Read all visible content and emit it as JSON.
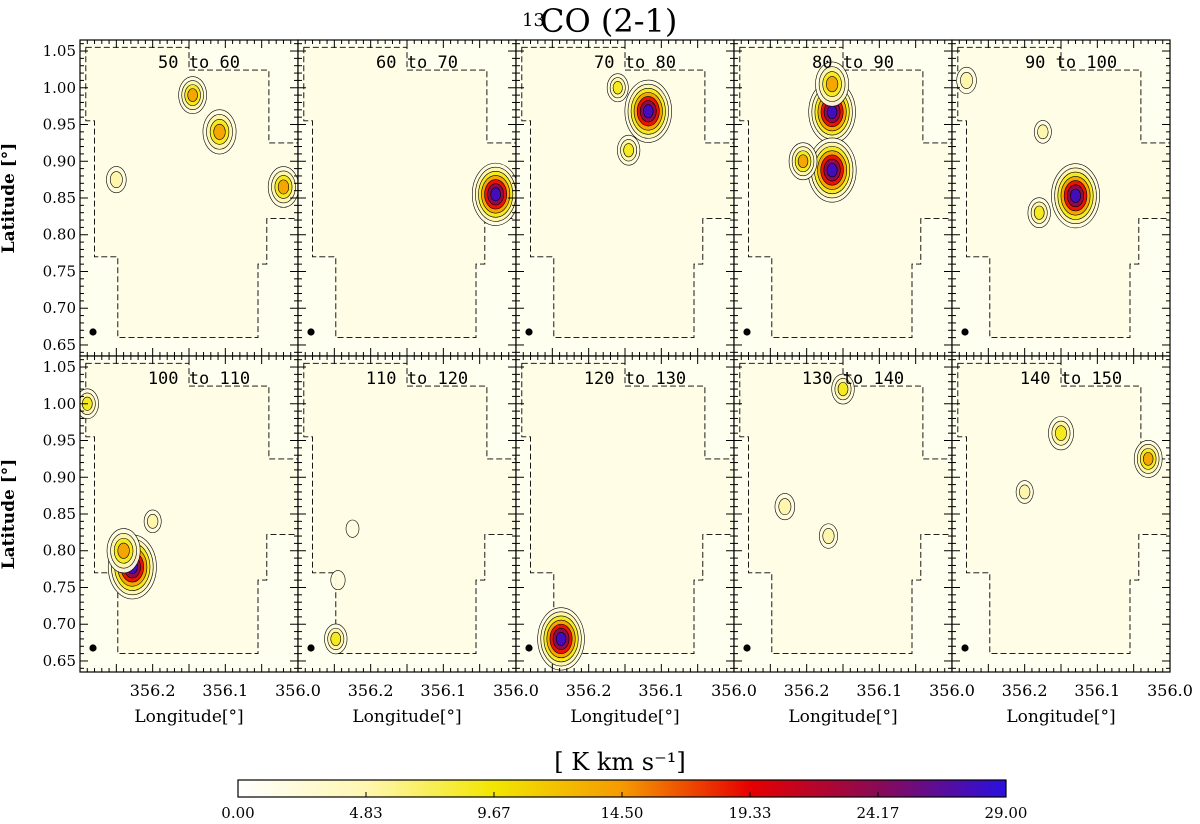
{
  "chart_data": {
    "type": "heatmap",
    "title": "13CO (2-1)",
    "title_superscript": "13",
    "title_main": "CO (2-1)",
    "xlabel": "Longitude[°]",
    "ylabel": "Latitude [°]",
    "xlim": [
      356.3,
      356.0
    ],
    "ylim": [
      0.635,
      1.065
    ],
    "xticks": [
      356.2,
      356.1,
      356.0
    ],
    "xtick_labels": [
      "356.2",
      "356.1",
      "356.0"
    ],
    "yticks": [
      1.05,
      1.0,
      0.95,
      0.9,
      0.85,
      0.8,
      0.75,
      0.7,
      0.65
    ],
    "ytick_labels": [
      "1.05",
      "1.00",
      "0.95",
      "0.90",
      "0.85",
      "0.80",
      "0.75",
      "0.70",
      "0.65"
    ],
    "colorbar": {
      "label": "[ K km s⁻¹]",
      "min": 0.0,
      "max": 29.0,
      "ticks": [
        "0.00",
        "4.83",
        "9.67",
        "14.50",
        "19.33",
        "24.17",
        "29.00"
      ],
      "colors": [
        "#ffffff",
        "#fff7b0",
        "#f2e600",
        "#f59a00",
        "#e60000",
        "#8a0a55",
        "#2a10e0"
      ]
    },
    "panels": [
      {
        "label": "50 to 60",
        "peaks": [
          {
            "l": 356.108,
            "b": 0.94,
            "v": 18
          },
          {
            "l": 356.02,
            "b": 0.865,
            "v": 16
          },
          {
            "l": 356.145,
            "b": 0.99,
            "v": 14
          },
          {
            "l": 356.25,
            "b": 0.875,
            "v": 8
          }
        ]
      },
      {
        "label": "60 to 70",
        "peaks": [
          {
            "l": 356.028,
            "b": 0.855,
            "v": 28
          }
        ]
      },
      {
        "label": "70 to 80",
        "peaks": [
          {
            "l": 356.118,
            "b": 0.968,
            "v": 28
          },
          {
            "l": 356.145,
            "b": 0.915,
            "v": 10
          },
          {
            "l": 356.16,
            "b": 1.0,
            "v": 9
          }
        ]
      },
      {
        "label": "80 to 90",
        "peaks": [
          {
            "l": 356.165,
            "b": 0.967,
            "v": 28
          },
          {
            "l": 356.165,
            "b": 0.888,
            "v": 29
          },
          {
            "l": 356.165,
            "b": 1.005,
            "v": 18
          },
          {
            "l": 356.205,
            "b": 0.9,
            "v": 14
          }
        ]
      },
      {
        "label": "90 to 100",
        "peaks": [
          {
            "l": 356.13,
            "b": 0.853,
            "v": 29
          },
          {
            "l": 356.18,
            "b": 0.83,
            "v": 10
          },
          {
            "l": 356.175,
            "b": 0.94,
            "v": 6
          },
          {
            "l": 356.28,
            "b": 1.01,
            "v": 8
          }
        ]
      },
      {
        "label": "100 to 110",
        "peaks": [
          {
            "l": 356.228,
            "b": 0.778,
            "v": 29
          },
          {
            "l": 356.24,
            "b": 0.8,
            "v": 18
          },
          {
            "l": 356.2,
            "b": 0.84,
            "v": 6
          },
          {
            "l": 356.29,
            "b": 1.0,
            "v": 10
          }
        ]
      },
      {
        "label": "110 to 120",
        "peaks": [
          {
            "l": 356.248,
            "b": 0.68,
            "v": 10
          },
          {
            "l": 356.225,
            "b": 0.83,
            "v": 3
          },
          {
            "l": 356.245,
            "b": 0.76,
            "v": 4
          }
        ]
      },
      {
        "label": "120 to 130",
        "peaks": [
          {
            "l": 356.238,
            "b": 0.68,
            "v": 28
          }
        ]
      },
      {
        "label": "130 to 140",
        "peaks": [
          {
            "l": 356.23,
            "b": 0.86,
            "v": 8
          },
          {
            "l": 356.17,
            "b": 0.82,
            "v": 7
          },
          {
            "l": 356.15,
            "b": 1.02,
            "v": 10
          }
        ]
      },
      {
        "label": "140 to 150",
        "peaks": [
          {
            "l": 356.03,
            "b": 0.925,
            "v": 14
          },
          {
            "l": 356.15,
            "b": 0.96,
            "v": 12
          },
          {
            "l": 356.2,
            "b": 0.88,
            "v": 6
          }
        ]
      }
    ]
  }
}
